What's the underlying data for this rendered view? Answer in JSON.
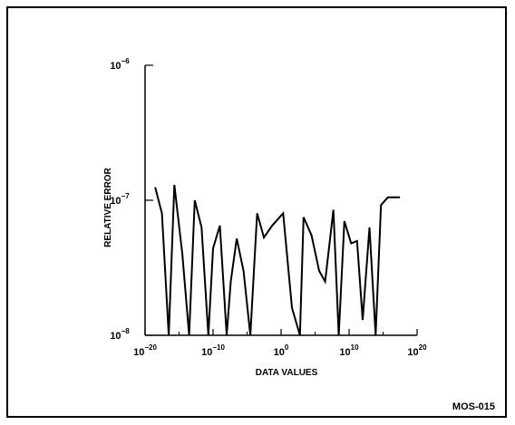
{
  "figure_id": "MOS-015",
  "chart_data": {
    "type": "line",
    "xlabel": "DATA VALUES",
    "ylabel": "RELATIVE ERROR",
    "x_scale": "log",
    "y_scale": "log",
    "xlim": [
      1e-20,
      1e+20
    ],
    "ylim": [
      1e-08,
      1e-06
    ],
    "x_ticks": [
      {
        "base": "10",
        "exp": "−20",
        "value": 1e-20
      },
      {
        "base": "10",
        "exp": "−10",
        "value": 1e-10
      },
      {
        "base": "10",
        "exp": "0",
        "value": 1
      },
      {
        "base": "10",
        "exp": "10",
        "value": 10000000000.0
      },
      {
        "base": "10",
        "exp": "20",
        "value": 1e+20
      }
    ],
    "y_ticks": [
      {
        "base": "10",
        "exp": "−6",
        "value": 1e-06
      },
      {
        "base": "10",
        "exp": "−7",
        "value": 1e-07
      },
      {
        "base": "10",
        "exp": "−8",
        "value": 1e-08
      }
    ],
    "grid": false,
    "series": [
      {
        "x": [
          3e-19,
          3e-18,
          3e-17,
          2e-16,
          3e-15,
          3e-14,
          2e-13,
          2e-12,
          2e-11,
          1e-10,
          1e-09,
          1e-08,
          4e-08,
          3e-07,
          3e-06,
          3e-05,
          0.0003,
          0.003,
          0.05,
          2,
          40,
          600,
          2000.0,
          30000.0,
          400000.0,
          3000000.0,
          50000000.0,
          300000000.0,
          2000000000.0,
          20000000000.0,
          150000000000.0,
          1000000000000.0,
          10000000000000.0,
          80000000000000.0,
          500000000000000.0,
          5000000000000000.0,
          3e+16,
          3e+17
        ],
        "y": [
          1.25e-07,
          8e-08,
          1e-08,
          1.3e-07,
          4e-08,
          1e-08,
          1e-07,
          6.3e-08,
          1e-08,
          4.4e-08,
          6.5e-08,
          1e-08,
          2.5e-08,
          5.2e-08,
          3e-08,
          1e-08,
          8e-08,
          5.3e-08,
          6.5e-08,
          8e-08,
          1.6e-08,
          1e-08,
          7.5e-08,
          5.5e-08,
          3e-08,
          2.5e-08,
          8.5e-08,
          1e-08,
          7e-08,
          4.8e-08,
          5e-08,
          1.3e-08,
          6.3e-08,
          1e-08,
          9.2e-08,
          1.05e-07,
          1.05e-07,
          1.05e-07
        ]
      }
    ]
  }
}
